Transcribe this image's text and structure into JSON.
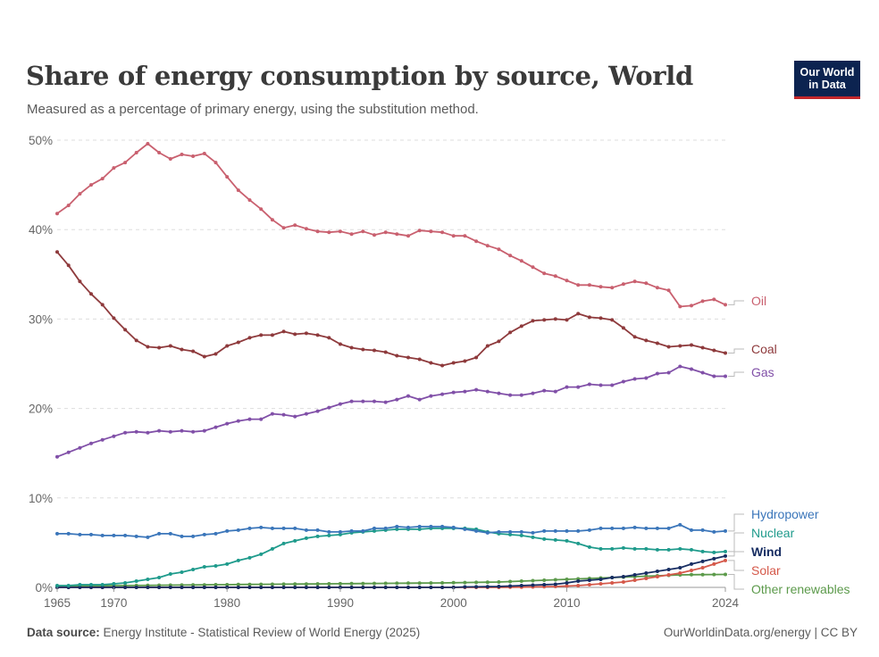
{
  "header": {
    "title": "Share of energy consumption by source, World",
    "subtitle": "Measured as a percentage of primary energy, using the substitution method.",
    "logo_line1": "Our World",
    "logo_line2": "in Data"
  },
  "footer": {
    "source_label": "Data source:",
    "source_text": "Energy Institute - Statistical Review of World Energy (2025)",
    "credit": "OurWorldinData.org/energy | CC BY"
  },
  "colors": {
    "oil": "#c9606f",
    "coal": "#8e3a3c",
    "gas": "#8150a8",
    "hydropower": "#3b76ba",
    "nuclear": "#1f9b8c",
    "wind": "#172d62",
    "solar": "#d5594a",
    "other": "#5c9a4b",
    "grid": "#dddddd",
    "logo_bg": "#0c2350",
    "logo_bar": "#c3272b"
  },
  "chart_data": {
    "type": "line",
    "title": "Share of energy consumption by source, World",
    "xlabel": "",
    "ylabel": "",
    "xlim": [
      1965,
      2024
    ],
    "ylim": [
      0,
      50
    ],
    "y_ticks": [
      "0%",
      "10%",
      "20%",
      "30%",
      "40%",
      "50%"
    ],
    "y_tick_values": [
      0,
      10,
      20,
      30,
      40,
      50
    ],
    "x_ticks": [
      "1965",
      "1970",
      "1980",
      "1990",
      "2000",
      "2010",
      "2024"
    ],
    "x_tick_values": [
      1965,
      1970,
      1980,
      1990,
      2000,
      2010,
      2024
    ],
    "grid": true,
    "start_year": 1965,
    "series": [
      {
        "key": "oil",
        "name": "Oil",
        "values": [
          41.8,
          42.7,
          44.0,
          45.0,
          45.7,
          46.9,
          47.5,
          48.6,
          49.6,
          48.6,
          47.9,
          48.4,
          48.2,
          48.5,
          47.5,
          45.9,
          44.4,
          43.3,
          42.3,
          41.1,
          40.2,
          40.5,
          40.1,
          39.8,
          39.7,
          39.8,
          39.5,
          39.8,
          39.4,
          39.7,
          39.5,
          39.3,
          39.9,
          39.8,
          39.7,
          39.3,
          39.3,
          38.7,
          38.2,
          37.8,
          37.1,
          36.5,
          35.8,
          35.1,
          34.8,
          34.3,
          33.8,
          33.8,
          33.6,
          33.5,
          33.9,
          34.2,
          34.0,
          33.5,
          33.2,
          31.4,
          31.5,
          32.0,
          32.2,
          31.6
        ]
      },
      {
        "key": "coal",
        "name": "Coal",
        "values": [
          37.5,
          36.0,
          34.2,
          32.8,
          31.6,
          30.1,
          28.8,
          27.6,
          26.9,
          26.8,
          27.0,
          26.6,
          26.4,
          25.8,
          26.1,
          27.0,
          27.4,
          27.9,
          28.2,
          28.2,
          28.6,
          28.3,
          28.4,
          28.2,
          27.9,
          27.2,
          26.8,
          26.6,
          26.5,
          26.3,
          25.9,
          25.7,
          25.5,
          25.1,
          24.8,
          25.1,
          25.3,
          25.7,
          27.0,
          27.5,
          28.5,
          29.2,
          29.8,
          29.9,
          30.0,
          29.9,
          30.6,
          30.2,
          30.1,
          29.9,
          29.0,
          28.0,
          27.6,
          27.3,
          26.9,
          27.0,
          27.1,
          26.8,
          26.5,
          26.2
        ]
      },
      {
        "key": "gas",
        "name": "Gas",
        "values": [
          14.6,
          15.1,
          15.6,
          16.1,
          16.5,
          16.9,
          17.3,
          17.4,
          17.3,
          17.5,
          17.4,
          17.5,
          17.4,
          17.5,
          17.9,
          18.3,
          18.6,
          18.8,
          18.8,
          19.4,
          19.3,
          19.1,
          19.4,
          19.7,
          20.1,
          20.5,
          20.8,
          20.8,
          20.8,
          20.7,
          21.0,
          21.4,
          21.0,
          21.4,
          21.6,
          21.8,
          21.9,
          22.1,
          21.9,
          21.7,
          21.5,
          21.5,
          21.7,
          22.0,
          21.9,
          22.4,
          22.4,
          22.7,
          22.6,
          22.6,
          23.0,
          23.3,
          23.4,
          23.9,
          24.0,
          24.7,
          24.4,
          24.0,
          23.6,
          23.6
        ]
      },
      {
        "key": "hydropower",
        "name": "Hydropower",
        "values": [
          6.0,
          6.0,
          5.9,
          5.9,
          5.8,
          5.8,
          5.8,
          5.7,
          5.6,
          6.0,
          6.0,
          5.7,
          5.7,
          5.9,
          6.0,
          6.3,
          6.4,
          6.6,
          6.7,
          6.6,
          6.6,
          6.6,
          6.4,
          6.4,
          6.2,
          6.2,
          6.3,
          6.3,
          6.6,
          6.6,
          6.8,
          6.7,
          6.8,
          6.8,
          6.8,
          6.7,
          6.5,
          6.3,
          6.1,
          6.2,
          6.2,
          6.2,
          6.1,
          6.3,
          6.3,
          6.3,
          6.3,
          6.4,
          6.6,
          6.6,
          6.6,
          6.7,
          6.6,
          6.6,
          6.6,
          7.0,
          6.4,
          6.4,
          6.2,
          6.3
        ]
      },
      {
        "key": "nuclear",
        "name": "Nuclear",
        "values": [
          0.2,
          0.2,
          0.3,
          0.3,
          0.3,
          0.4,
          0.5,
          0.7,
          0.9,
          1.1,
          1.5,
          1.7,
          2.0,
          2.3,
          2.4,
          2.6,
          3.0,
          3.3,
          3.7,
          4.3,
          4.9,
          5.2,
          5.5,
          5.7,
          5.8,
          5.9,
          6.1,
          6.2,
          6.3,
          6.4,
          6.5,
          6.5,
          6.5,
          6.6,
          6.6,
          6.6,
          6.6,
          6.5,
          6.2,
          6.0,
          5.9,
          5.8,
          5.6,
          5.4,
          5.3,
          5.2,
          4.9,
          4.5,
          4.3,
          4.3,
          4.4,
          4.3,
          4.3,
          4.2,
          4.2,
          4.3,
          4.2,
          4.0,
          3.9,
          4.0
        ]
      },
      {
        "key": "wind",
        "name": "Wind",
        "values": [
          0,
          0,
          0,
          0,
          0,
          0,
          0,
          0,
          0,
          0,
          0,
          0,
          0,
          0,
          0,
          0,
          0,
          0,
          0,
          0,
          0,
          0,
          0,
          0,
          0,
          0,
          0,
          0,
          0,
          0,
          0,
          0,
          0,
          0,
          0,
          0,
          0.05,
          0.06,
          0.08,
          0.1,
          0.15,
          0.2,
          0.25,
          0.3,
          0.35,
          0.5,
          0.7,
          0.8,
          0.9,
          1.1,
          1.2,
          1.4,
          1.6,
          1.8,
          2.0,
          2.2,
          2.6,
          2.9,
          3.2,
          3.5
        ]
      },
      {
        "key": "solar",
        "name": "Solar",
        "values": [
          0,
          0,
          0,
          0,
          0,
          0,
          0,
          0,
          0,
          0,
          0,
          0,
          0,
          0,
          0,
          0,
          0,
          0,
          0,
          0,
          0,
          0,
          0,
          0,
          0,
          0,
          0,
          0,
          0,
          0,
          0,
          0,
          0,
          0,
          0,
          0,
          0,
          0,
          0,
          0,
          0.02,
          0.03,
          0.05,
          0.08,
          0.1,
          0.15,
          0.2,
          0.3,
          0.4,
          0.5,
          0.6,
          0.8,
          1.0,
          1.2,
          1.4,
          1.6,
          1.9,
          2.2,
          2.6,
          3.0
        ]
      },
      {
        "key": "other",
        "name": "Other renewables",
        "values": [
          0.15,
          0.15,
          0.16,
          0.17,
          0.18,
          0.2,
          0.2,
          0.21,
          0.22,
          0.24,
          0.25,
          0.26,
          0.27,
          0.28,
          0.3,
          0.3,
          0.32,
          0.33,
          0.34,
          0.35,
          0.36,
          0.37,
          0.38,
          0.39,
          0.4,
          0.41,
          0.42,
          0.43,
          0.44,
          0.45,
          0.46,
          0.47,
          0.48,
          0.49,
          0.5,
          0.52,
          0.54,
          0.56,
          0.58,
          0.6,
          0.65,
          0.7,
          0.75,
          0.8,
          0.85,
          0.9,
          0.95,
          1.0,
          1.05,
          1.1,
          1.15,
          1.2,
          1.25,
          1.3,
          1.35,
          1.4,
          1.42,
          1.43,
          1.44,
          1.45
        ]
      }
    ],
    "end_labels": [
      "Oil",
      "Coal",
      "Gas",
      "Hydropower",
      "Nuclear",
      "Wind",
      "Solar",
      "Other renewables"
    ]
  }
}
